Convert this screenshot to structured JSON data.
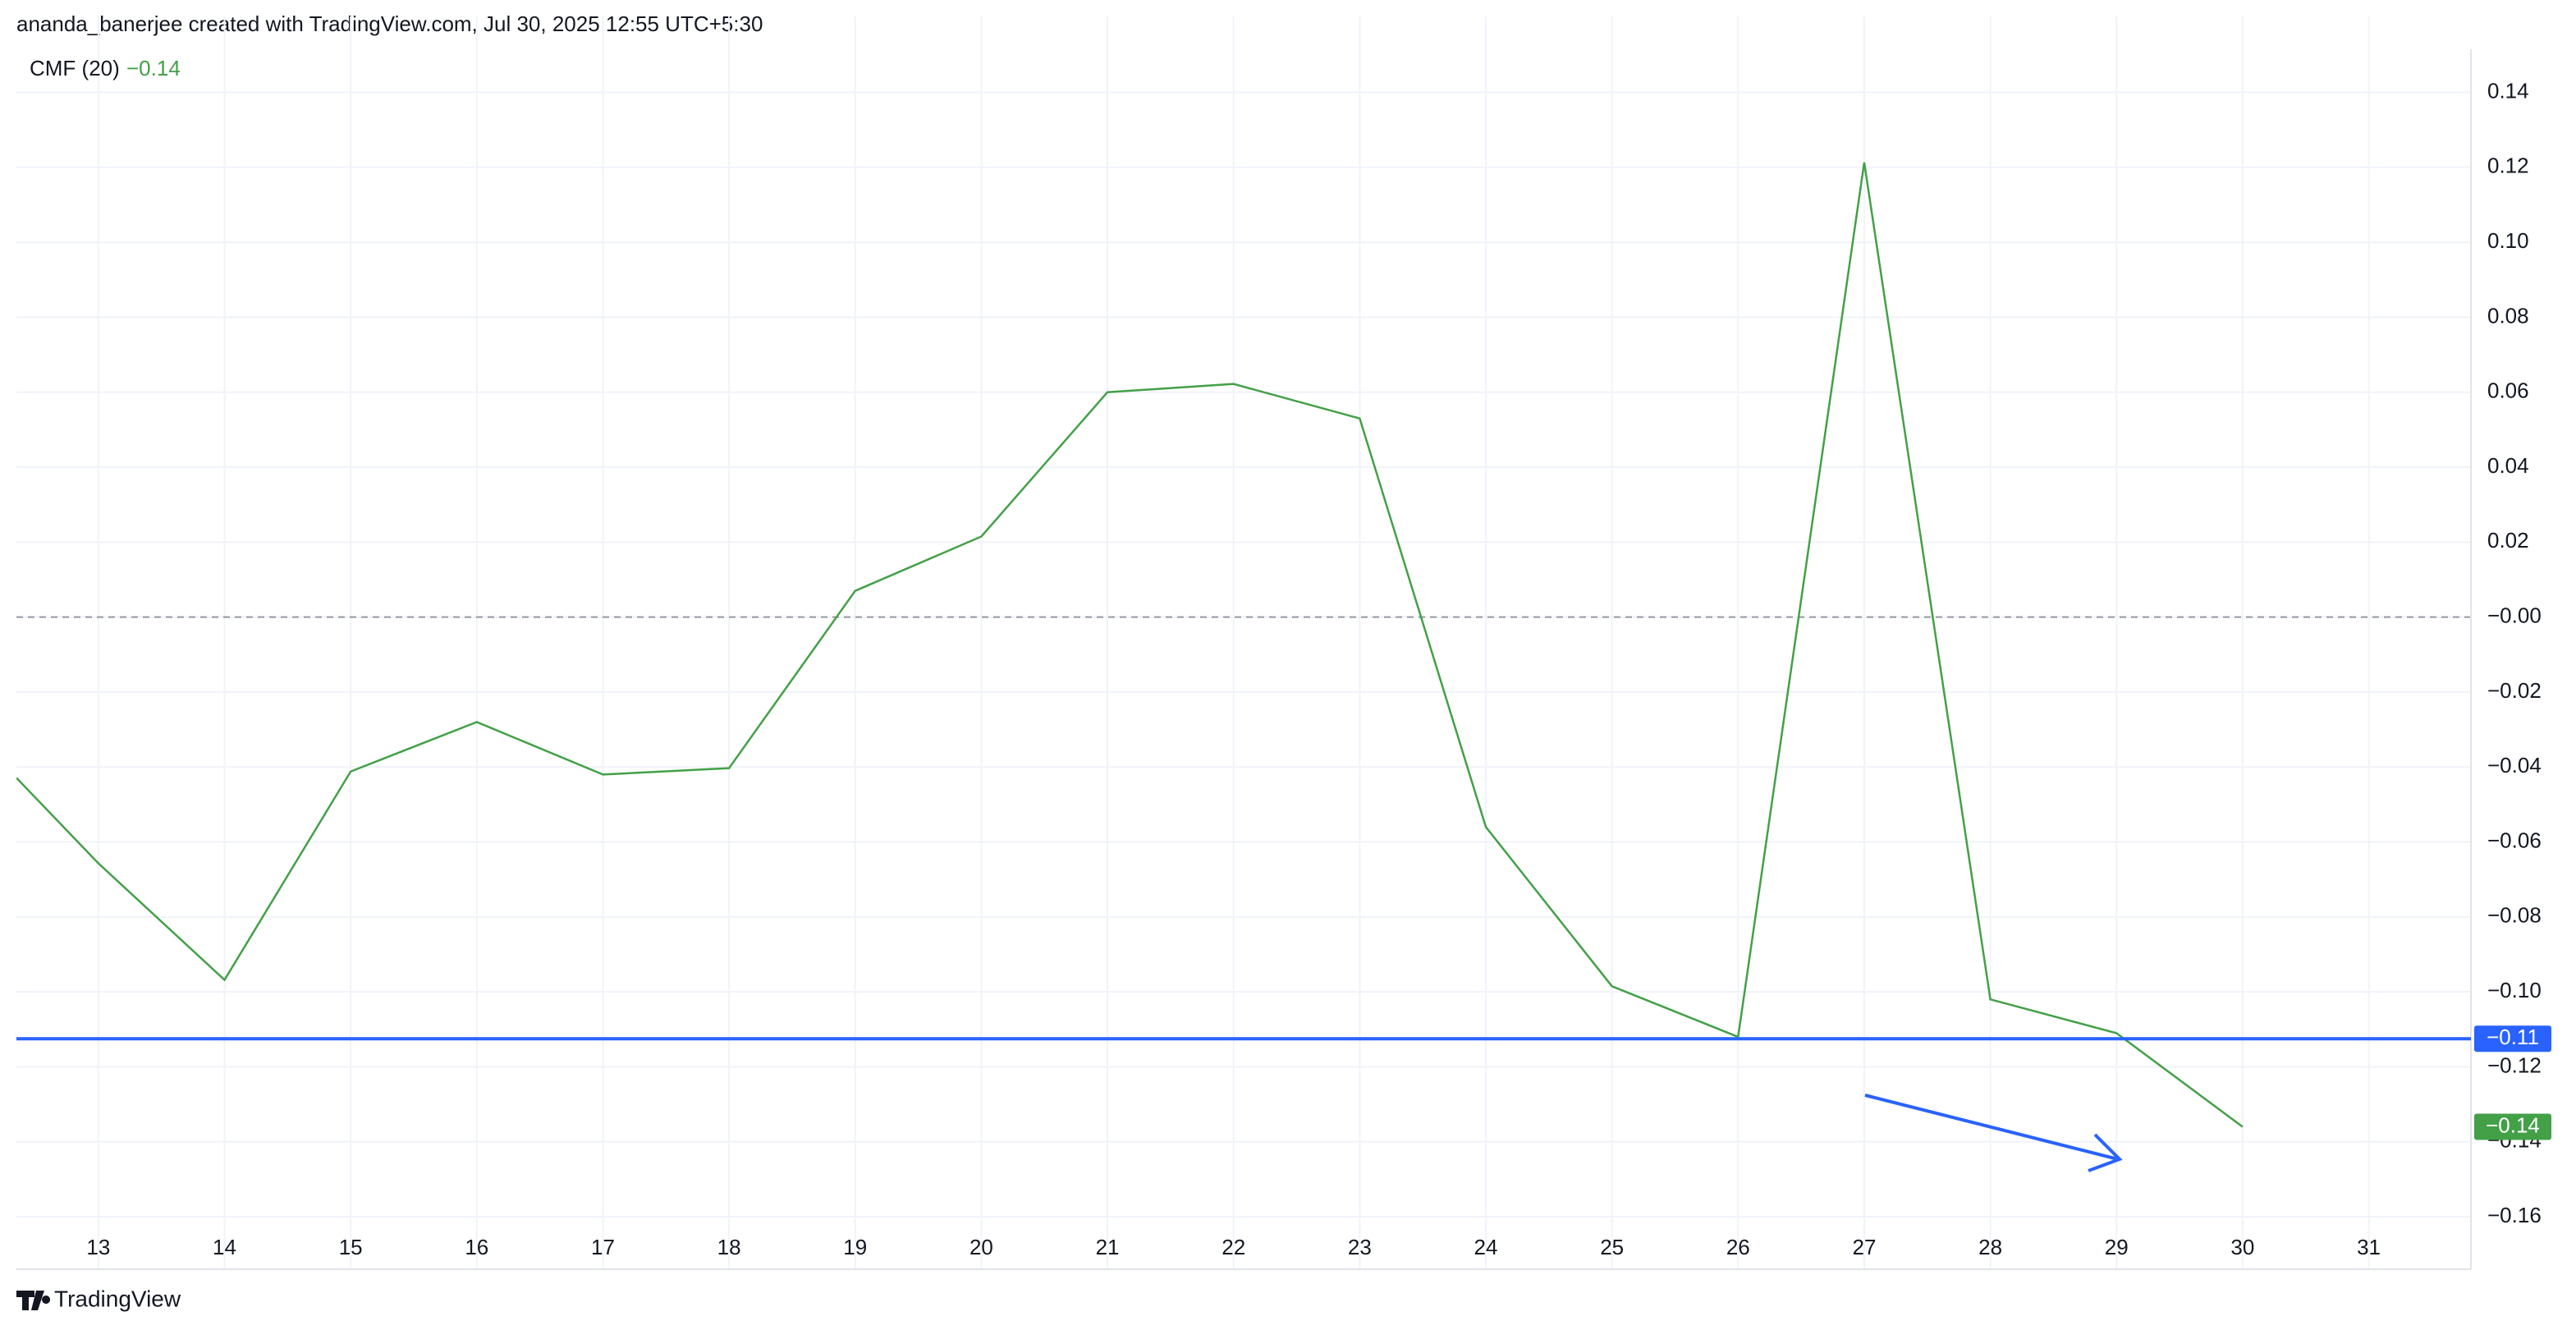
{
  "header": "ananda_banerjee created with TradingView.com, Jul 30, 2025 12:55 UTC+5:30",
  "footer": "TradingView",
  "chart_data": {
    "type": "line",
    "legend": {
      "name": "CMF (20)",
      "value": "−0.14"
    },
    "x": [
      12.35,
      13,
      14,
      15,
      16,
      17,
      18,
      19,
      20,
      21,
      22,
      23,
      24,
      25,
      26,
      27,
      28,
      29,
      30
    ],
    "series": [
      {
        "name": "CMF (20)",
        "color": "#43a047",
        "values": [
          -0.0429,
          -0.0657,
          -0.0968,
          -0.0412,
          -0.028,
          -0.042,
          -0.0403,
          0.007,
          0.0215,
          0.06,
          0.0622,
          0.053,
          -0.056,
          -0.0985,
          -0.112,
          0.1213,
          -0.102,
          -0.111,
          -0.136
        ]
      }
    ],
    "zero_line": 0,
    "hline": {
      "value": -0.1125,
      "label": "−0.11",
      "color": "#2962ff"
    },
    "xlim": [
      12.35,
      31.81
    ],
    "ylim": [
      -0.174,
      0.1515
    ],
    "xticks": [
      13,
      14,
      15,
      16,
      17,
      18,
      19,
      20,
      21,
      22,
      23,
      24,
      25,
      26,
      27,
      28,
      29,
      30,
      31
    ],
    "yticks": [
      {
        "value": 0.14,
        "label": "0.14"
      },
      {
        "value": 0.12,
        "label": "0.12"
      },
      {
        "value": 0.1,
        "label": "0.10"
      },
      {
        "value": 0.08,
        "label": "0.08"
      },
      {
        "value": 0.06,
        "label": "0.06"
      },
      {
        "value": 0.04,
        "label": "0.04"
      },
      {
        "value": 0.02,
        "label": "0.02"
      },
      {
        "value": 0,
        "label": "−0.00"
      },
      {
        "value": -0.02,
        "label": "−0.02"
      },
      {
        "value": -0.04,
        "label": "−0.04"
      },
      {
        "value": -0.06,
        "label": "−0.06"
      },
      {
        "value": -0.08,
        "label": "−0.08"
      },
      {
        "value": -0.1,
        "label": "−0.10"
      },
      {
        "value": -0.12,
        "label": "−0.12"
      },
      {
        "value": -0.14,
        "label": "−0.14"
      },
      {
        "value": -0.16,
        "label": "−0.16"
      }
    ],
    "grid": true
  }
}
